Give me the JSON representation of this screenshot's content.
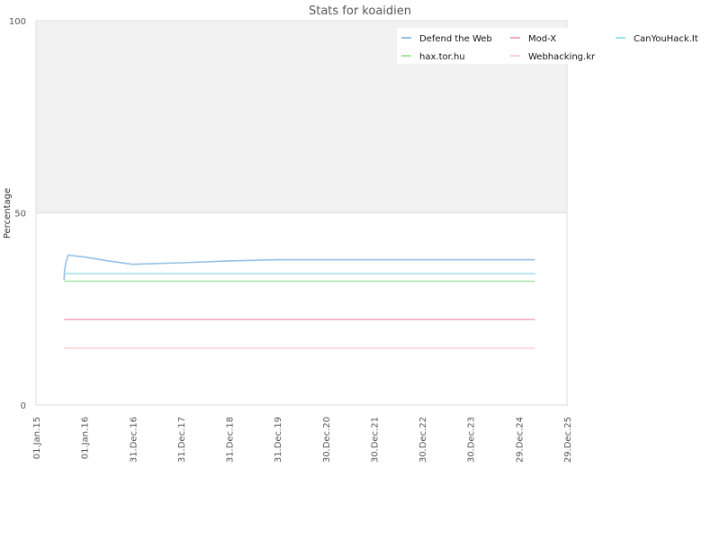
{
  "chart_data": {
    "type": "line",
    "title": "Stats for koaidien",
    "xlabel": "",
    "ylabel": "Percentage",
    "ylim": [
      0,
      100
    ],
    "y_ticks": [
      "0",
      "50",
      "100"
    ],
    "x_ticks": [
      "01.Jan.15",
      "01.Jan.16",
      "31.Dec.16",
      "31.Dec.17",
      "31.Dec.18",
      "31.Dec.19",
      "30.Dec.20",
      "30.Dec.21",
      "30.Dec.22",
      "30.Dec.23",
      "29.Dec.24",
      "29.Dec.25"
    ],
    "x_range": [
      "2015-01-01",
      "2025-12-29"
    ],
    "background": {
      "upper_band_color": "#f2f2f2",
      "lower_band_color": "#ffffff"
    },
    "legend_position": "top-right",
    "grid": false,
    "series": [
      {
        "name": "Defend the Web",
        "color": "#95c0e6",
        "x": [
          "2015-08-01",
          "2015-08-05",
          "2015-08-15",
          "2015-09-01",
          "2016-01-01",
          "2016-07-01",
          "2017-01-01",
          "2017-06-01",
          "2018-01-01",
          "2019-01-01",
          "2020-01-01",
          "2022-01-01",
          "2024-06-01",
          "2025-05-01"
        ],
        "y": [
          32.5,
          35,
          37,
          39,
          38.5,
          37.5,
          36.6,
          36.8,
          37,
          37.5,
          37.8,
          37.8,
          37.8,
          37.8
        ]
      },
      {
        "name": "Mod-X",
        "color": "#f2a7c3",
        "x": [
          "2015-08-01",
          "2025-05-01"
        ],
        "y": [
          22.3,
          22.3
        ]
      },
      {
        "name": "CanYouHack.It",
        "color": "#9fe0e8",
        "x": [
          "2015-08-01",
          "2025-05-01"
        ],
        "y": [
          34.2,
          34.2
        ]
      },
      {
        "name": "hax.tor.hu",
        "color": "#a8e6a0",
        "x": [
          "2015-08-01",
          "2025-05-01"
        ],
        "y": [
          32.2,
          32.2
        ]
      },
      {
        "name": "Webhacking.kr",
        "color": "#f9cfd8",
        "x": [
          "2015-08-01",
          "2025-05-01"
        ],
        "y": [
          14.8,
          14.8
        ]
      }
    ]
  }
}
